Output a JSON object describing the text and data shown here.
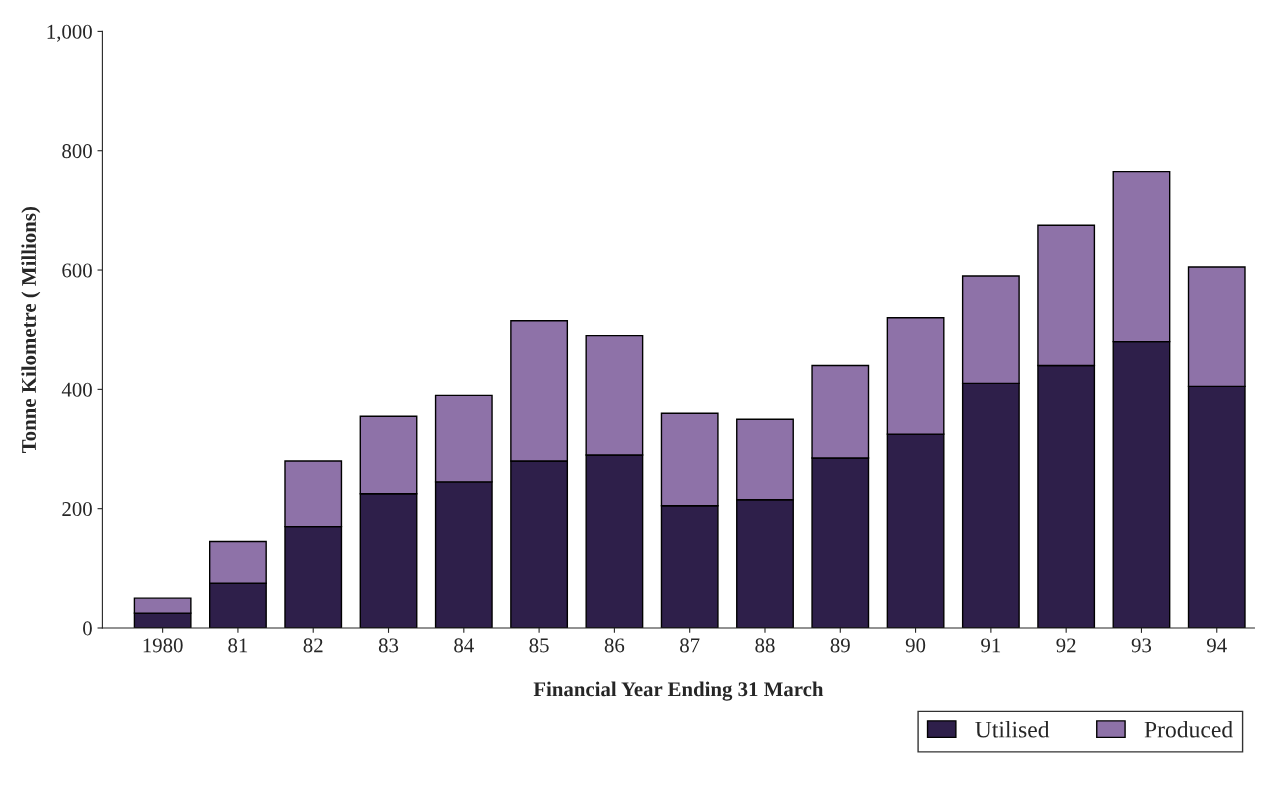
{
  "chart_data": {
    "type": "bar",
    "stacked": true,
    "xlabel": "Financial Year Ending 31 March",
    "ylabel": "Tonne Kilometre ( Millions)",
    "categories": [
      "1980",
      "81",
      "82",
      "83",
      "84",
      "85",
      "86",
      "87",
      "88",
      "89",
      "90",
      "91",
      "92",
      "93",
      "94"
    ],
    "series": [
      {
        "name": "Utilised",
        "color": "#2e1f4a",
        "values": [
          25,
          75,
          170,
          225,
          245,
          280,
          290,
          205,
          215,
          285,
          325,
          410,
          440,
          480,
          405
        ]
      },
      {
        "name": "Produced",
        "color": "#8e72a8",
        "values": [
          25,
          70,
          110,
          130,
          145,
          235,
          200,
          155,
          135,
          155,
          195,
          180,
          235,
          285,
          200
        ]
      }
    ],
    "ylim": [
      0,
      1000
    ],
    "yticks": [
      0,
      200,
      400,
      600,
      800,
      {
        "value": 1000,
        "label": "1,000"
      }
    ],
    "grid": false,
    "legend": "bottom right"
  }
}
